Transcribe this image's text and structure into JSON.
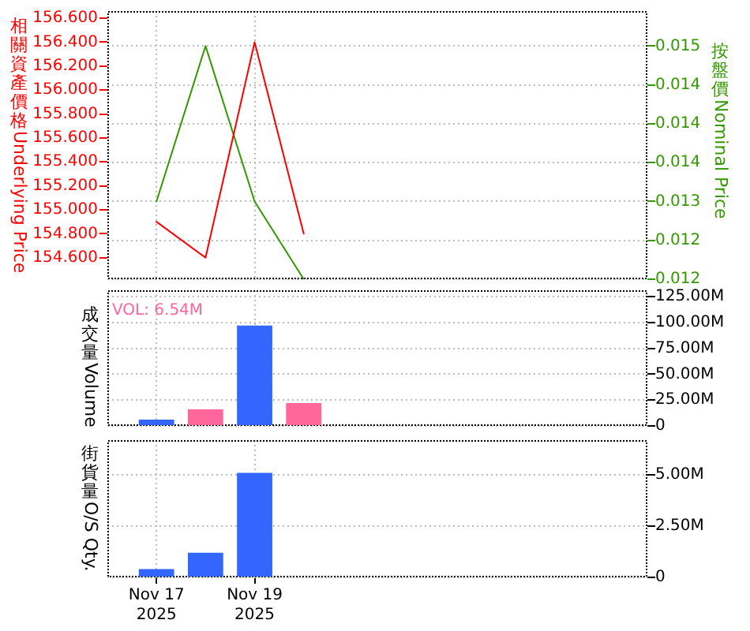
{
  "chart_data": [
    {
      "type": "line",
      "x": [
        "2025-11-17",
        "2025-11-18",
        "2025-11-19",
        "2025-11-20"
      ],
      "xlim": [
        "2025-11-16",
        "2025-11-27"
      ],
      "xticks": [
        {
          "value": "2025-11-17",
          "label": null
        },
        {
          "value": "2025-11-19",
          "label": null
        }
      ],
      "ylabel": "相關資產價格Underlying Price",
      "y2label": "按盤價Nominal Price",
      "series": [
        {
          "color": "#ff0000",
          "values": [
            154.9,
            154.6,
            156.4,
            154.8
          ]
        },
        {
          "color": "#339900",
          "axis": "y2",
          "values": [
            0.013,
            0.015,
            0.013,
            0.012
          ]
        }
      ],
      "ylim": [
        154.42,
        156.66
      ],
      "yticks": [
        {
          "value": 154.6,
          "label": "154.600"
        },
        {
          "value": 154.8,
          "label": "154.800"
        },
        {
          "value": 155,
          "label": "155.000"
        },
        {
          "value": 155.2,
          "label": "155.200"
        },
        {
          "value": 155.4,
          "label": "155.400"
        },
        {
          "value": 155.6,
          "label": "155.600"
        },
        {
          "value": 155.8,
          "label": "155.800"
        },
        {
          "value": 156,
          "label": "156.000"
        },
        {
          "value": 156.2,
          "label": "156.200"
        },
        {
          "value": 156.4,
          "label": "156.400"
        },
        {
          "value": 156.6,
          "label": "156.600"
        }
      ],
      "y2lim": [
        0.012,
        0.01545
      ],
      "y2ticks": [
        0.012,
        {
          "value": 0.0125,
          "label": "0.012"
        },
        0.013,
        {
          "value": 0.0135,
          "label": "0.014"
        },
        0.014,
        {
          "value": 0.0145,
          "label": "0.014"
        },
        0.015
      ],
      "grid": true,
      "tick_labels": "y"
    },
    {
      "type": "bar",
      "x": [
        "2025-11-17",
        "2025-11-18",
        "2025-11-19",
        "2025-11-20"
      ],
      "xlim": [
        "2025-11-16",
        "2025-11-27"
      ],
      "xticks": [
        {
          "value": "2025-11-17",
          "label": null
        },
        {
          "value": "2025-11-19",
          "label": null
        }
      ],
      "ylabel": "成交量Volume",
      "values": [
        6,
        16,
        97,
        22
      ],
      "colors": [
        "#3366ff",
        "#ff6699",
        "#3366ff",
        "#ff6699"
      ],
      "ylim": [
        0,
        131
      ],
      "yticks": [
        0,
        {
          "value": 25,
          "label": "25.00M"
        },
        {
          "value": 50,
          "label": "50.00M"
        },
        {
          "value": 75,
          "label": "75.00M"
        },
        {
          "value": 100,
          "label": "100.00M"
        },
        {
          "value": 125,
          "label": "125.00M"
        }
      ],
      "annotations": [
        "VOL: 6.54M"
      ],
      "grid": true,
      "tick_labels": "y"
    },
    {
      "type": "bar",
      "x": [
        "2025-11-17",
        "2025-11-18",
        "2025-11-19"
      ],
      "xlim": [
        "2025-11-16",
        "2025-11-27"
      ],
      "xticks": [
        {
          "value": "2025-11-17",
          "label": "Nov 17 2025"
        },
        {
          "value": "2025-11-19",
          "label": "Nov 19 2025"
        }
      ],
      "ylabel": "街貨量O/S Qty.",
      "values": [
        0.4,
        1.2,
        5.1
      ],
      "color": "#3366ff",
      "ylim": [
        0,
        6.7
      ],
      "yticks": [
        0,
        {
          "value": 2.5,
          "label": "2.50M"
        },
        {
          "value": 5,
          "label": "5.00M"
        }
      ],
      "grid": true
    }
  ]
}
